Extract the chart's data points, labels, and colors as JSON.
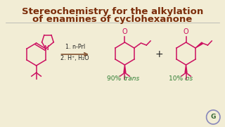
{
  "title_line1": "Stereochemistry for the alkylation",
  "title_line2": "of enamines of cyclohexanone",
  "title_color": "#7B2D0A",
  "title_fontsize": 9.5,
  "bg_color": "#F2EDD5",
  "structure_color": "#CC1060",
  "arrow_color": "#8B5E3C",
  "reagent_line1": "1. n-PrI",
  "reagent_line2": "2. H⁺, H₂O",
  "reagent_color": "#222222",
  "label_color": "#2E7D32",
  "plus_color": "#222222",
  "watermark_color": "#8888BB",
  "watermark_text_color": "#336633",
  "sep_color": "#AAAAAA"
}
